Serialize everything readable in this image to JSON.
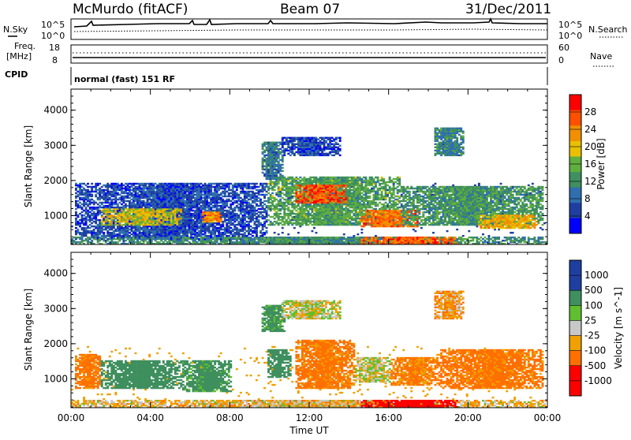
{
  "header": {
    "station": "McMurdo (fitACF)",
    "beam": "Beam 07",
    "date": "31/Dec/2011"
  },
  "noise_panel": {
    "left_label": "N.Sky",
    "right_label": "N.Search",
    "left_ticks": [
      "10^5",
      "10^0"
    ],
    "right_ticks": [
      "10^5",
      "10^0"
    ]
  },
  "freq_panel": {
    "left_label": [
      "Freq.",
      "[MHz]"
    ],
    "right_label": "Nave",
    "left_ticks": [
      "18",
      "8"
    ],
    "right_ticks": [
      "60",
      "0"
    ]
  },
  "cpid_panel": {
    "label": "CPID",
    "mode": "normal (fast) 151 RF"
  },
  "colors": {
    "power_scale": [
      "#0000ff",
      "#1f3fa0",
      "#2f6fb0",
      "#3f8f5f",
      "#5faf3f",
      "#e8c000",
      "#f09000",
      "#ff5000",
      "#ff0000"
    ],
    "velocity_scale": [
      "#1f3fa0",
      "#3f8f5f",
      "#5fbf2f",
      "#c8c8c8",
      "#f0a000",
      "#ff7000",
      "#ff0000"
    ]
  },
  "chart_data": [
    {
      "type": "heatmap",
      "panel": "power",
      "ylabel": "Slant Range [km]",
      "yticks": [
        "1000",
        "2000",
        "3000",
        "4000"
      ],
      "ylim": [
        180,
        4600
      ],
      "xlabel": "Time UT",
      "xticks": [
        "00:00",
        "04:00",
        "08:00",
        "12:00",
        "16:00",
        "20:00",
        "00:00"
      ],
      "xlim": [
        0,
        24
      ],
      "colorbar": {
        "label": "Power [dB]",
        "ticks": [
          "28",
          "24",
          "20",
          "16",
          "12",
          "8",
          "4"
        ],
        "range": [
          0,
          32
        ]
      },
      "patches": [
        {
          "t0": 0.2,
          "t1": 9.8,
          "r0": 300,
          "r1": 1900,
          "v": 6
        },
        {
          "t0": 1.5,
          "t1": 5.5,
          "r0": 700,
          "r1": 1200,
          "v": 19
        },
        {
          "t0": 6.5,
          "t1": 7.5,
          "r0": 800,
          "r1": 1100,
          "v": 23
        },
        {
          "t0": 9.8,
          "t1": 16.5,
          "r0": 700,
          "r1": 2100,
          "v": 14
        },
        {
          "t0": 11.2,
          "t1": 13.8,
          "r0": 1350,
          "r1": 1850,
          "v": 27
        },
        {
          "t0": 14.5,
          "t1": 17.5,
          "r0": 650,
          "r1": 1150,
          "v": 25
        },
        {
          "t0": 16.5,
          "t1": 23.8,
          "r0": 700,
          "r1": 1800,
          "v": 13
        },
        {
          "t0": 20.5,
          "t1": 23.5,
          "r0": 600,
          "r1": 1000,
          "v": 21
        },
        {
          "t0": 9.5,
          "t1": 10.6,
          "r0": 2000,
          "r1": 3100,
          "v": 10
        },
        {
          "t0": 10.5,
          "t1": 13.5,
          "r0": 2700,
          "r1": 3200,
          "v": 6
        },
        {
          "t0": 18.2,
          "t1": 19.8,
          "r0": 2700,
          "r1": 3500,
          "v": 11
        },
        {
          "t0": 0.0,
          "t1": 24.0,
          "r0": 180,
          "r1": 380,
          "v": 12
        },
        {
          "t0": 14.5,
          "t1": 19.5,
          "r0": 180,
          "r1": 380,
          "v": 26
        }
      ]
    },
    {
      "type": "heatmap",
      "panel": "velocity",
      "ylabel": "Slant Range [km]",
      "yticks": [
        "1000",
        "2000",
        "3000",
        "4000"
      ],
      "ylim": [
        180,
        4600
      ],
      "xlabel": "Time UT",
      "xticks": [
        "00:00",
        "04:00",
        "08:00",
        "12:00",
        "16:00",
        "20:00",
        "00:00"
      ],
      "xlim": [
        0,
        24
      ],
      "colorbar": {
        "label": "Velocity [m s^-1]",
        "ticks": [
          "1000",
          "500",
          "100",
          "25",
          "-25",
          "-100",
          "-500",
          "-1000"
        ],
        "range": [
          -1200,
          1200
        ]
      },
      "patches": [
        {
          "t0": 0.2,
          "t1": 1.5,
          "r0": 700,
          "r1": 1700,
          "v": -150
        },
        {
          "t0": 1.5,
          "t1": 5.5,
          "r0": 700,
          "r1": 1500,
          "v": 400
        },
        {
          "t0": 5.5,
          "t1": 8.0,
          "r0": 600,
          "r1": 1500,
          "v": 150
        },
        {
          "t0": 6.5,
          "t1": 7.6,
          "r0": 700,
          "r1": 1200,
          "v": 350
        },
        {
          "t0": 9.8,
          "t1": 11.0,
          "r0": 1000,
          "r1": 1800,
          "v": 350
        },
        {
          "t0": 11.2,
          "t1": 14.2,
          "r0": 700,
          "r1": 2100,
          "v": -150
        },
        {
          "t0": 14.2,
          "t1": 16.0,
          "r0": 900,
          "r1": 1600,
          "v": 0
        },
        {
          "t0": 16.0,
          "t1": 18.5,
          "r0": 800,
          "r1": 1600,
          "v": -120
        },
        {
          "t0": 18.5,
          "t1": 23.8,
          "r0": 700,
          "r1": 1800,
          "v": -150
        },
        {
          "t0": 9.5,
          "t1": 10.7,
          "r0": 2300,
          "r1": 3100,
          "v": 150
        },
        {
          "t0": 10.5,
          "t1": 13.5,
          "r0": 2700,
          "r1": 3200,
          "v": 0
        },
        {
          "t0": 18.2,
          "t1": 19.8,
          "r0": 2700,
          "r1": 3500,
          "v": -80
        },
        {
          "t0": 0.0,
          "t1": 24.0,
          "r0": 180,
          "r1": 360,
          "v": -40
        },
        {
          "t0": 14.5,
          "t1": 19.5,
          "r0": 180,
          "r1": 360,
          "v": -600
        }
      ]
    }
  ]
}
